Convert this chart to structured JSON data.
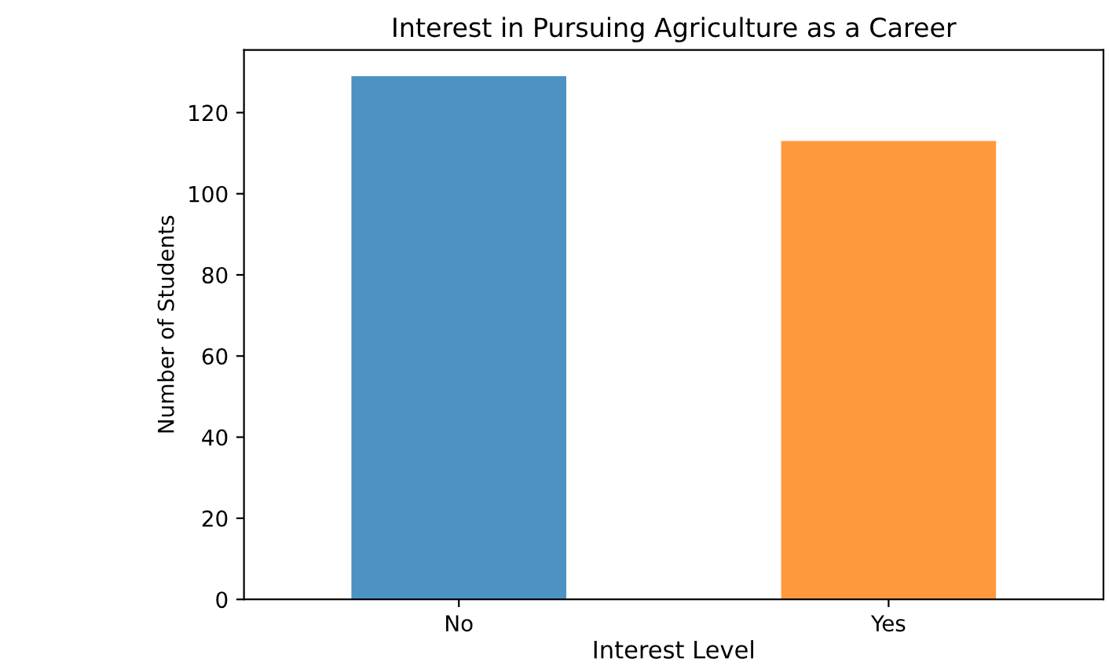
{
  "chart_data": {
    "type": "bar",
    "title": "Interest in Pursuing Agriculture as a Career",
    "xlabel": "Interest Level",
    "ylabel": "Number of Students",
    "categories": [
      "No",
      "Yes"
    ],
    "values": [
      129,
      113
    ],
    "colors": [
      "#4c92c3",
      "#ff993e"
    ],
    "ylim": [
      0,
      135.45
    ],
    "yticks": [
      0,
      20,
      40,
      60,
      80,
      100,
      120
    ],
    "grid": false
  }
}
